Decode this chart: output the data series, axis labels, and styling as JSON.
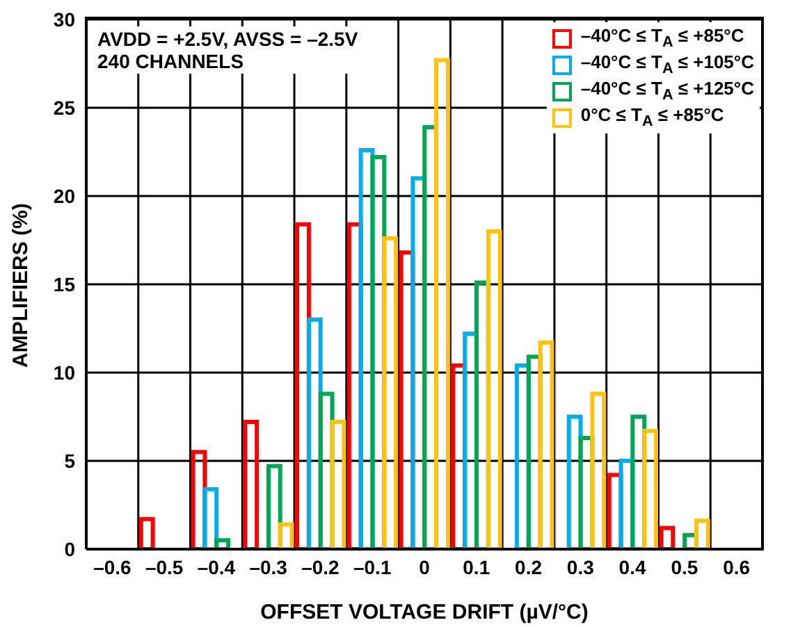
{
  "chart_data": {
    "type": "bar",
    "xlabel": "OFFSET VOLTAGE DRIFT (µV/°C)",
    "ylabel": "AMPLIFIERS (%)",
    "annotations": [
      "AVDD = +2.5V, AVSS = –2.5V",
      "240 CHANNELS"
    ],
    "categories": [
      "–0.6",
      "–0.5",
      "–0.4",
      "–0.3",
      "–0.2",
      "–0.1",
      "0",
      "0.1",
      "0.2",
      "0.3",
      "0.4",
      "0.5",
      "0.6"
    ],
    "series": [
      {
        "name": "–40°C ≤ T$_{A}$ ≤ +85°C",
        "color": "#ff0000",
        "values": [
          null,
          1.7,
          5.5,
          7.2,
          18.4,
          18.4,
          16.8,
          10.4,
          null,
          null,
          4.2,
          1.2,
          null
        ]
      },
      {
        "name": "–40°C ≤ T$_{A}$ ≤ +105°C",
        "color": "#00aeef",
        "values": [
          null,
          0,
          3.4,
          null,
          13.0,
          22.6,
          21.0,
          12.2,
          10.4,
          7.5,
          5.0,
          null,
          null
        ]
      },
      {
        "name": "–40°C ≤ T$_{A}$ ≤ +125°C",
        "color": "#00a651",
        "values": [
          null,
          0,
          0.5,
          4.7,
          8.8,
          22.2,
          23.9,
          15.1,
          10.9,
          6.3,
          7.5,
          0.8,
          null
        ]
      },
      {
        "name": "0°C ≤ T$_{A}$ ≤ +85°C",
        "color": "#ffc20e",
        "values": [
          null,
          0,
          0,
          1.4,
          7.2,
          17.6,
          27.7,
          18.0,
          11.7,
          8.8,
          6.7,
          1.6,
          null
        ]
      }
    ],
    "ylim": [
      0,
      30
    ],
    "yticks": [
      0,
      5,
      10,
      15,
      20,
      25,
      30
    ],
    "grid": true,
    "legend": "top right"
  }
}
